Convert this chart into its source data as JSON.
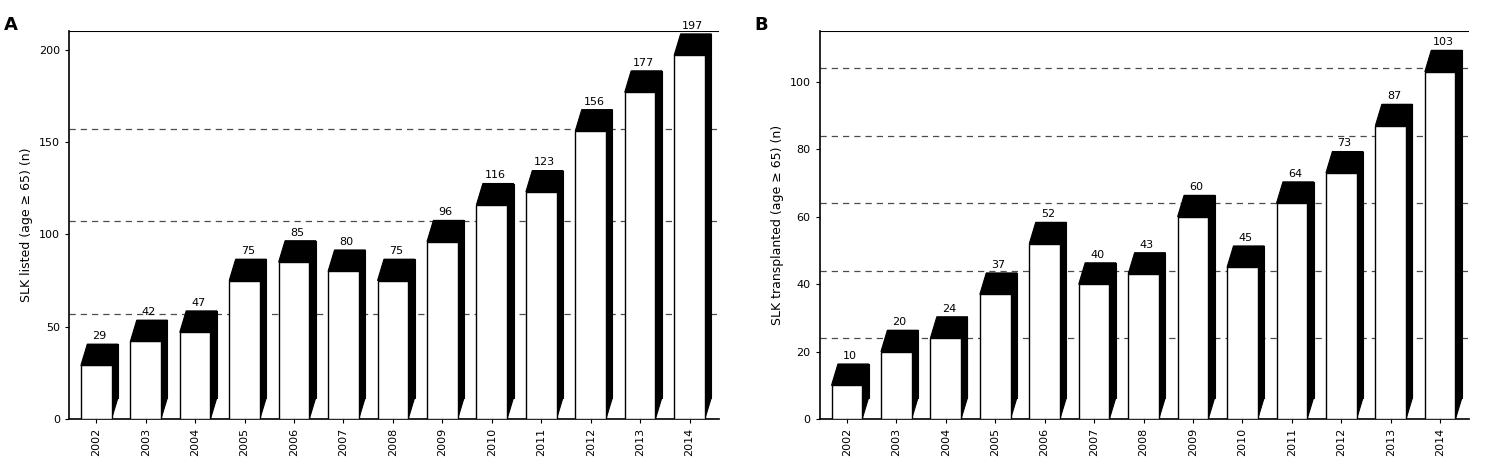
{
  "years": [
    "2002",
    "2003",
    "2004",
    "2005",
    "2006",
    "2007",
    "2008",
    "2009",
    "2010",
    "2011",
    "2012",
    "2013",
    "2014"
  ],
  "values_A": [
    29,
    42,
    47,
    75,
    85,
    80,
    75,
    96,
    116,
    123,
    156,
    177,
    197
  ],
  "values_B": [
    10,
    20,
    24,
    37,
    52,
    40,
    43,
    60,
    45,
    64,
    73,
    87,
    103
  ],
  "ylabel_A": "SLK listed (age ≥ 65) (n)",
  "ylabel_B": "SLK transplanted (age ≥ 65) (n)",
  "ylim_A": [
    0,
    210
  ],
  "ylim_B": [
    0,
    115
  ],
  "yticks_A": [
    0,
    50,
    100,
    150,
    200
  ],
  "yticks_B": [
    0,
    20,
    40,
    60,
    80,
    100
  ],
  "hlines_A": [
    57,
    107,
    157
  ],
  "hlines_B": [
    24,
    44,
    64,
    84,
    104
  ],
  "label_A": "A",
  "label_B": "B",
  "bar_face_color": "white",
  "bar_edge_color": "black",
  "depth_color": "black",
  "background_color": "white",
  "annotation_fontsize": 8,
  "ylabel_fontsize": 9,
  "tick_fontsize": 8,
  "panel_label_fontsize": 13
}
